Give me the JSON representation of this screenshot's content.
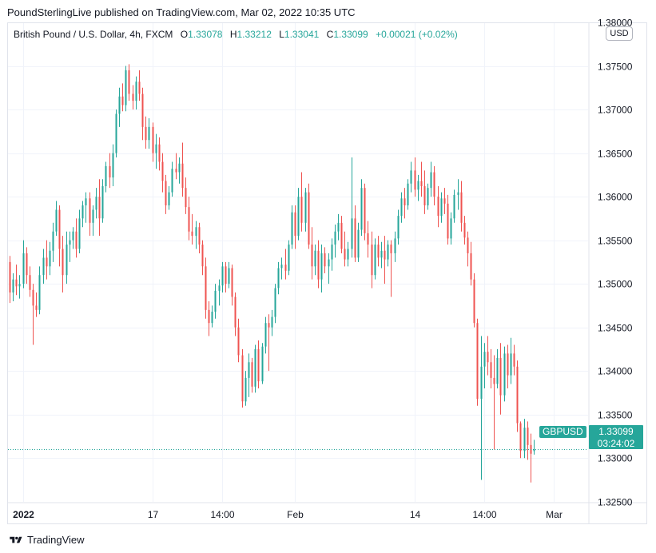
{
  "publisher": "PoundSterlingLive published on TradingView.com, Mar 02, 2022 10:35 UTC",
  "legend": {
    "instrument": "British Pound / U.S. Dollar, 4h, FXCM",
    "o_label": "O",
    "o": "1.33078",
    "h_label": "H",
    "h": "1.33212",
    "l_label": "L",
    "l": "1.33041",
    "c_label": "C",
    "c": "1.33099",
    "change": "+0.00021 (+0.02%)"
  },
  "currency_button": "USD",
  "price_tag": {
    "symbol": "GBPUSD",
    "price": "1.33099",
    "countdown": "03:24:02"
  },
  "footer_brand": "TradingView",
  "colors": {
    "up": "#26a69a",
    "down": "#ef5350",
    "grid": "#f0f3fa",
    "text": "#131722"
  },
  "chart_data": {
    "type": "candlestick",
    "ylim": [
      1.3225,
      1.38
    ],
    "y_ticks": [
      "1.38000",
      "1.37500",
      "1.37000",
      "1.36500",
      "1.36000",
      "1.35500",
      "1.35000",
      "1.34500",
      "1.34000",
      "1.33500",
      "1.33000",
      "1.32500"
    ],
    "y_tick_values": [
      1.38,
      1.375,
      1.37,
      1.365,
      1.36,
      1.355,
      1.35,
      1.345,
      1.34,
      1.335,
      1.33,
      1.325
    ],
    "x_ticks": [
      {
        "label": "2022",
        "bar": 4,
        "bold": true
      },
      {
        "label": "17",
        "bar": 43
      },
      {
        "label": "14:00",
        "bar": 64
      },
      {
        "label": "Feb",
        "bar": 86
      },
      {
        "label": "14",
        "bar": 122
      },
      {
        "label": "14:00",
        "bar": 143
      },
      {
        "label": "Mar",
        "bar": 164
      }
    ],
    "last_price": 1.33099,
    "candles": [
      [
        1.3525,
        1.3532,
        1.3478,
        1.349
      ],
      [
        1.349,
        1.3512,
        1.348,
        1.3505
      ],
      [
        1.3505,
        1.3522,
        1.3487,
        1.3497
      ],
      [
        1.3497,
        1.351,
        1.3483,
        1.35
      ],
      [
        1.35,
        1.355,
        1.3495,
        1.3535
      ],
      [
        1.3535,
        1.3542,
        1.35,
        1.351
      ],
      [
        1.351,
        1.352,
        1.3485,
        1.3493
      ],
      [
        1.3493,
        1.35,
        1.343,
        1.3475
      ],
      [
        1.3475,
        1.349,
        1.3462,
        1.347
      ],
      [
        1.347,
        1.352,
        1.3465,
        1.351
      ],
      [
        1.351,
        1.354,
        1.35,
        1.353
      ],
      [
        1.353,
        1.355,
        1.3505,
        1.352
      ],
      [
        1.352,
        1.3548,
        1.351,
        1.3538
      ],
      [
        1.3538,
        1.357,
        1.3525,
        1.356
      ],
      [
        1.356,
        1.3595,
        1.3555,
        1.3585
      ],
      [
        1.3585,
        1.359,
        1.352,
        1.354
      ],
      [
        1.354,
        1.3555,
        1.349,
        1.351
      ],
      [
        1.351,
        1.356,
        1.35,
        1.3545
      ],
      [
        1.3545,
        1.356,
        1.3525,
        1.355
      ],
      [
        1.355,
        1.3565,
        1.354,
        1.356
      ],
      [
        1.356,
        1.3575,
        1.353,
        1.354
      ],
      [
        1.354,
        1.3585,
        1.3535,
        1.3575
      ],
      [
        1.3575,
        1.3595,
        1.3565,
        1.359
      ],
      [
        1.359,
        1.3605,
        1.357,
        1.3598
      ],
      [
        1.3598,
        1.3605,
        1.3555,
        1.357
      ],
      [
        1.357,
        1.359,
        1.3555,
        1.3585
      ],
      [
        1.3585,
        1.361,
        1.3575,
        1.36
      ],
      [
        1.36,
        1.362,
        1.3555,
        1.3575
      ],
      [
        1.3575,
        1.362,
        1.357,
        1.3612
      ],
      [
        1.3612,
        1.364,
        1.3605,
        1.3635
      ],
      [
        1.3635,
        1.365,
        1.361,
        1.3622
      ],
      [
        1.3622,
        1.366,
        1.3612,
        1.365
      ],
      [
        1.365,
        1.37,
        1.3645,
        1.3695
      ],
      [
        1.3695,
        1.3725,
        1.368,
        1.3715
      ],
      [
        1.3715,
        1.373,
        1.3698,
        1.3705
      ],
      [
        1.3705,
        1.375,
        1.3698,
        1.3745
      ],
      [
        1.3745,
        1.3752,
        1.371,
        1.3718
      ],
      [
        1.3718,
        1.3728,
        1.37,
        1.371
      ],
      [
        1.371,
        1.3738,
        1.37,
        1.3732
      ],
      [
        1.3732,
        1.3745,
        1.371,
        1.3718
      ],
      [
        1.3718,
        1.3725,
        1.3665,
        1.368
      ],
      [
        1.368,
        1.3692,
        1.3655,
        1.3665
      ],
      [
        1.3665,
        1.369,
        1.3655,
        1.368
      ],
      [
        1.368,
        1.3685,
        1.364,
        1.365
      ],
      [
        1.365,
        1.3672,
        1.3632,
        1.366
      ],
      [
        1.366,
        1.3668,
        1.363,
        1.364
      ],
      [
        1.364,
        1.365,
        1.3605,
        1.3618
      ],
      [
        1.3618,
        1.3625,
        1.358,
        1.359
      ],
      [
        1.359,
        1.3612,
        1.3585,
        1.3605
      ],
      [
        1.3605,
        1.364,
        1.36,
        1.3632
      ],
      [
        1.3632,
        1.365,
        1.362,
        1.3628
      ],
      [
        1.3628,
        1.3645,
        1.3615,
        1.3638
      ],
      [
        1.3638,
        1.3662,
        1.36,
        1.361
      ],
      [
        1.361,
        1.3622,
        1.358,
        1.3588
      ],
      [
        1.3588,
        1.36,
        1.355,
        1.356
      ],
      [
        1.356,
        1.358,
        1.3545,
        1.3555
      ],
      [
        1.3555,
        1.3572,
        1.354,
        1.3565
      ],
      [
        1.3565,
        1.357,
        1.3535,
        1.3545
      ],
      [
        1.3545,
        1.355,
        1.351,
        1.352
      ],
      [
        1.352,
        1.353,
        1.346,
        1.347
      ],
      [
        1.347,
        1.348,
        1.344,
        1.3455
      ],
      [
        1.3455,
        1.3475,
        1.345,
        1.3468
      ],
      [
        1.3468,
        1.35,
        1.346,
        1.3492
      ],
      [
        1.3492,
        1.3505,
        1.3475,
        1.3498
      ],
      [
        1.3498,
        1.3525,
        1.349,
        1.352
      ],
      [
        1.352,
        1.3525,
        1.349,
        1.35
      ],
      [
        1.35,
        1.3525,
        1.3495,
        1.3518
      ],
      [
        1.3518,
        1.3522,
        1.3475,
        1.3485
      ],
      [
        1.3485,
        1.349,
        1.344,
        1.345
      ],
      [
        1.345,
        1.346,
        1.341,
        1.3418
      ],
      [
        1.3418,
        1.3425,
        1.3358,
        1.3365
      ],
      [
        1.3365,
        1.34,
        1.336,
        1.3392
      ],
      [
        1.3392,
        1.342,
        1.337,
        1.341
      ],
      [
        1.341,
        1.3415,
        1.3375,
        1.3382
      ],
      [
        1.3382,
        1.343,
        1.3375,
        1.3425
      ],
      [
        1.3425,
        1.3435,
        1.338,
        1.3388
      ],
      [
        1.3388,
        1.3432,
        1.3385,
        1.3428
      ],
      [
        1.3428,
        1.3462,
        1.342,
        1.3455
      ],
      [
        1.3455,
        1.3465,
        1.34,
        1.345
      ],
      [
        1.345,
        1.347,
        1.344,
        1.3462
      ],
      [
        1.3462,
        1.35,
        1.3455,
        1.3495
      ],
      [
        1.3495,
        1.3525,
        1.3488,
        1.3518
      ],
      [
        1.3518,
        1.353,
        1.3505,
        1.3522
      ],
      [
        1.3522,
        1.354,
        1.3505,
        1.3515
      ],
      [
        1.3515,
        1.355,
        1.351,
        1.3545
      ],
      [
        1.3545,
        1.359,
        1.354,
        1.3582
      ],
      [
        1.3582,
        1.359,
        1.354,
        1.3555
      ],
      [
        1.3555,
        1.361,
        1.355,
        1.36
      ],
      [
        1.36,
        1.3628,
        1.356,
        1.357
      ],
      [
        1.357,
        1.361,
        1.356,
        1.3605
      ],
      [
        1.3605,
        1.3615,
        1.354,
        1.3545
      ],
      [
        1.3545,
        1.3565,
        1.3505,
        1.352
      ],
      [
        1.352,
        1.3545,
        1.351,
        1.3538
      ],
      [
        1.3538,
        1.355,
        1.3495,
        1.3505
      ],
      [
        1.3505,
        1.3545,
        1.349,
        1.3535
      ],
      [
        1.3535,
        1.3542,
        1.3512,
        1.352
      ],
      [
        1.352,
        1.3535,
        1.35,
        1.3528
      ],
      [
        1.3528,
        1.3552,
        1.3515,
        1.3545
      ],
      [
        1.3545,
        1.3568,
        1.353,
        1.356
      ],
      [
        1.356,
        1.358,
        1.355,
        1.357
      ],
      [
        1.357,
        1.3578,
        1.3535,
        1.354
      ],
      [
        1.354,
        1.356,
        1.352,
        1.3528
      ],
      [
        1.3528,
        1.3548,
        1.352,
        1.354
      ],
      [
        1.354,
        1.3645,
        1.353,
        1.3575
      ],
      [
        1.3575,
        1.359,
        1.3525,
        1.353
      ],
      [
        1.353,
        1.357,
        1.3525,
        1.3562
      ],
      [
        1.3562,
        1.362,
        1.3555,
        1.361
      ],
      [
        1.361,
        1.3615,
        1.355,
        1.3558
      ],
      [
        1.3558,
        1.3572,
        1.353,
        1.3545
      ],
      [
        1.3545,
        1.356,
        1.3495,
        1.351
      ],
      [
        1.351,
        1.3552,
        1.3505,
        1.3545
      ],
      [
        1.3545,
        1.3555,
        1.352,
        1.353
      ],
      [
        1.353,
        1.3548,
        1.3518,
        1.3538
      ],
      [
        1.3538,
        1.3555,
        1.35,
        1.3528
      ],
      [
        1.3528,
        1.355,
        1.352,
        1.3545
      ],
      [
        1.3545,
        1.355,
        1.3485,
        1.3535
      ],
      [
        1.3535,
        1.356,
        1.3525,
        1.3552
      ],
      [
        1.3552,
        1.3585,
        1.3545,
        1.3578
      ],
      [
        1.3578,
        1.3605,
        1.357,
        1.3598
      ],
      [
        1.3598,
        1.361,
        1.3575,
        1.359
      ],
      [
        1.359,
        1.362,
        1.3585,
        1.3615
      ],
      [
        1.3615,
        1.364,
        1.3605,
        1.363
      ],
      [
        1.363,
        1.3645,
        1.36,
        1.3608
      ],
      [
        1.3608,
        1.3625,
        1.3595,
        1.3618
      ],
      [
        1.3618,
        1.364,
        1.36,
        1.3612
      ],
      [
        1.3612,
        1.363,
        1.358,
        1.359
      ],
      [
        1.359,
        1.3615,
        1.3585,
        1.361
      ],
      [
        1.361,
        1.364,
        1.36,
        1.3628
      ],
      [
        1.3628,
        1.3635,
        1.359,
        1.36
      ],
      [
        1.36,
        1.3612,
        1.3565,
        1.3578
      ],
      [
        1.3578,
        1.3605,
        1.357,
        1.3598
      ],
      [
        1.3598,
        1.361,
        1.358,
        1.3592
      ],
      [
        1.3592,
        1.3602,
        1.3545,
        1.3552
      ],
      [
        1.3552,
        1.3582,
        1.3545,
        1.3575
      ],
      [
        1.3575,
        1.3608,
        1.357,
        1.3602
      ],
      [
        1.3602,
        1.362,
        1.3585,
        1.3605
      ],
      [
        1.3605,
        1.3618,
        1.356,
        1.357
      ],
      [
        1.357,
        1.3578,
        1.3545,
        1.3553
      ],
      [
        1.3553,
        1.356,
        1.352,
        1.3535
      ],
      [
        1.3535,
        1.3548,
        1.3498,
        1.3505
      ],
      [
        1.3505,
        1.3512,
        1.345,
        1.3455
      ],
      [
        1.3455,
        1.346,
        1.336,
        1.3368
      ],
      [
        1.3368,
        1.344,
        1.3275,
        1.3405
      ],
      [
        1.3405,
        1.3432,
        1.338,
        1.3422
      ],
      [
        1.3422,
        1.344,
        1.3395,
        1.341
      ],
      [
        1.341,
        1.3425,
        1.338,
        1.3392
      ],
      [
        1.3392,
        1.3418,
        1.331,
        1.3385
      ],
      [
        1.3385,
        1.3425,
        1.338,
        1.3415
      ],
      [
        1.3415,
        1.3432,
        1.335,
        1.3372
      ],
      [
        1.3372,
        1.3428,
        1.3365,
        1.342
      ],
      [
        1.342,
        1.343,
        1.338,
        1.3395
      ],
      [
        1.3395,
        1.3438,
        1.3385,
        1.342
      ],
      [
        1.342,
        1.343,
        1.3395,
        1.3405
      ],
      [
        1.3405,
        1.3412,
        1.333,
        1.334
      ],
      [
        1.334,
        1.3342,
        1.33,
        1.3308
      ],
      [
        1.3308,
        1.3345,
        1.33,
        1.3335
      ],
      [
        1.3335,
        1.3342,
        1.3298,
        1.3315
      ],
      [
        1.3315,
        1.3328,
        1.3272,
        1.3305
      ],
      [
        1.3308,
        1.3321,
        1.3304,
        1.331
      ]
    ]
  }
}
